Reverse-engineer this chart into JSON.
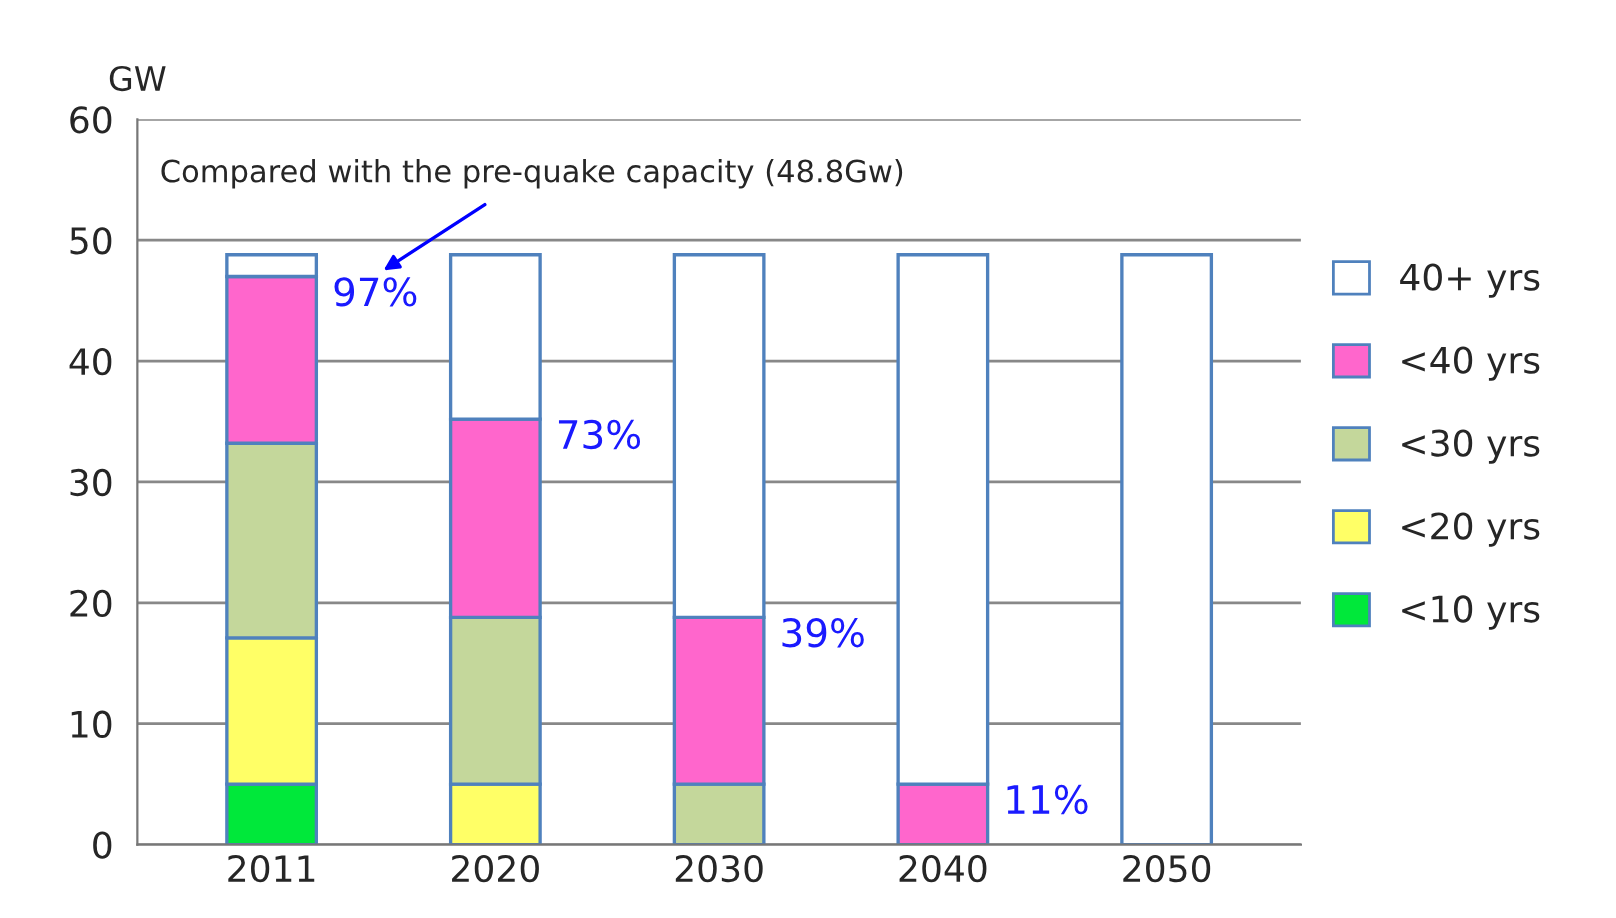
{
  "chart_data": {
    "type": "bar",
    "stacked": true,
    "ylabel": "GW",
    "categories": [
      "2011",
      "2020",
      "2030",
      "2040",
      "2050"
    ],
    "series": [
      {
        "name": "<10 yrs",
        "color": "#00e83a",
        "values": [
          5,
          0,
          0,
          0,
          0
        ]
      },
      {
        "name": "<20 yrs",
        "color": "#ffff66",
        "values": [
          12.1,
          5,
          0,
          0,
          0
        ]
      },
      {
        "name": "<30 yrs",
        "color": "#c4d79b",
        "values": [
          16.1,
          13.8,
          5,
          0,
          0
        ]
      },
      {
        "name": "<40 yrs",
        "color": "#ff66cc",
        "values": [
          13.8,
          16.4,
          13.8,
          5,
          0
        ]
      },
      {
        "name": "40+ yrs",
        "color": "#ffffff",
        "values": [
          1.8,
          13.6,
          30,
          43.8,
          48.8
        ]
      }
    ],
    "ylim": [
      0,
      60
    ],
    "yticks": [
      0,
      10,
      20,
      30,
      40,
      50,
      60
    ],
    "grid": "y",
    "legend": "right",
    "annotations": [
      "Compared with the pre-quake capacity (48.8Gw)",
      {
        "text": "97%",
        "x": "2011",
        "y": 47
      },
      {
        "text": "73%",
        "x": "2020",
        "y": 35.2
      },
      {
        "text": "39%",
        "x": "2030",
        "y": 18.8
      },
      {
        "text": "11%",
        "x": "2040",
        "y": 5
      }
    ]
  }
}
